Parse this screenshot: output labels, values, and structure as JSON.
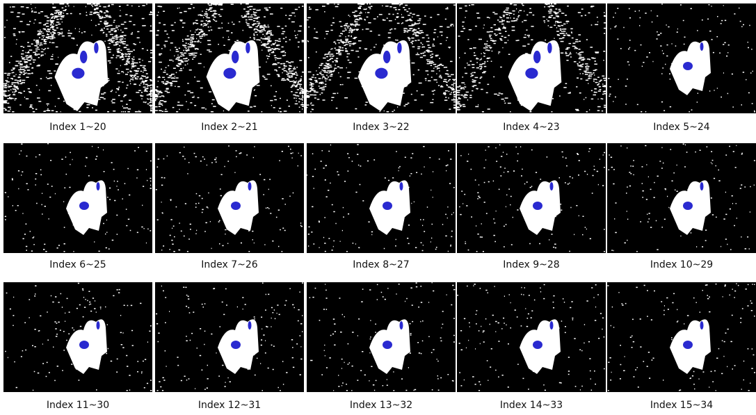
{
  "panels": [
    {
      "caption": "Index 1~20"
    },
    {
      "caption": "Index 2~21"
    },
    {
      "caption": "Index 3~22"
    },
    {
      "caption": "Index 4~23"
    },
    {
      "caption": "Index 5~24"
    },
    {
      "caption": "Index 6~25"
    },
    {
      "caption": "Index 7~26"
    },
    {
      "caption": "Index 8~27"
    },
    {
      "caption": "Index 9~28"
    },
    {
      "caption": "Index 10~29"
    },
    {
      "caption": "Index 11~30"
    },
    {
      "caption": "Index 12~31"
    },
    {
      "caption": "Index 13~32"
    },
    {
      "caption": "Index 14~33"
    },
    {
      "caption": "Index 15~34"
    }
  ]
}
